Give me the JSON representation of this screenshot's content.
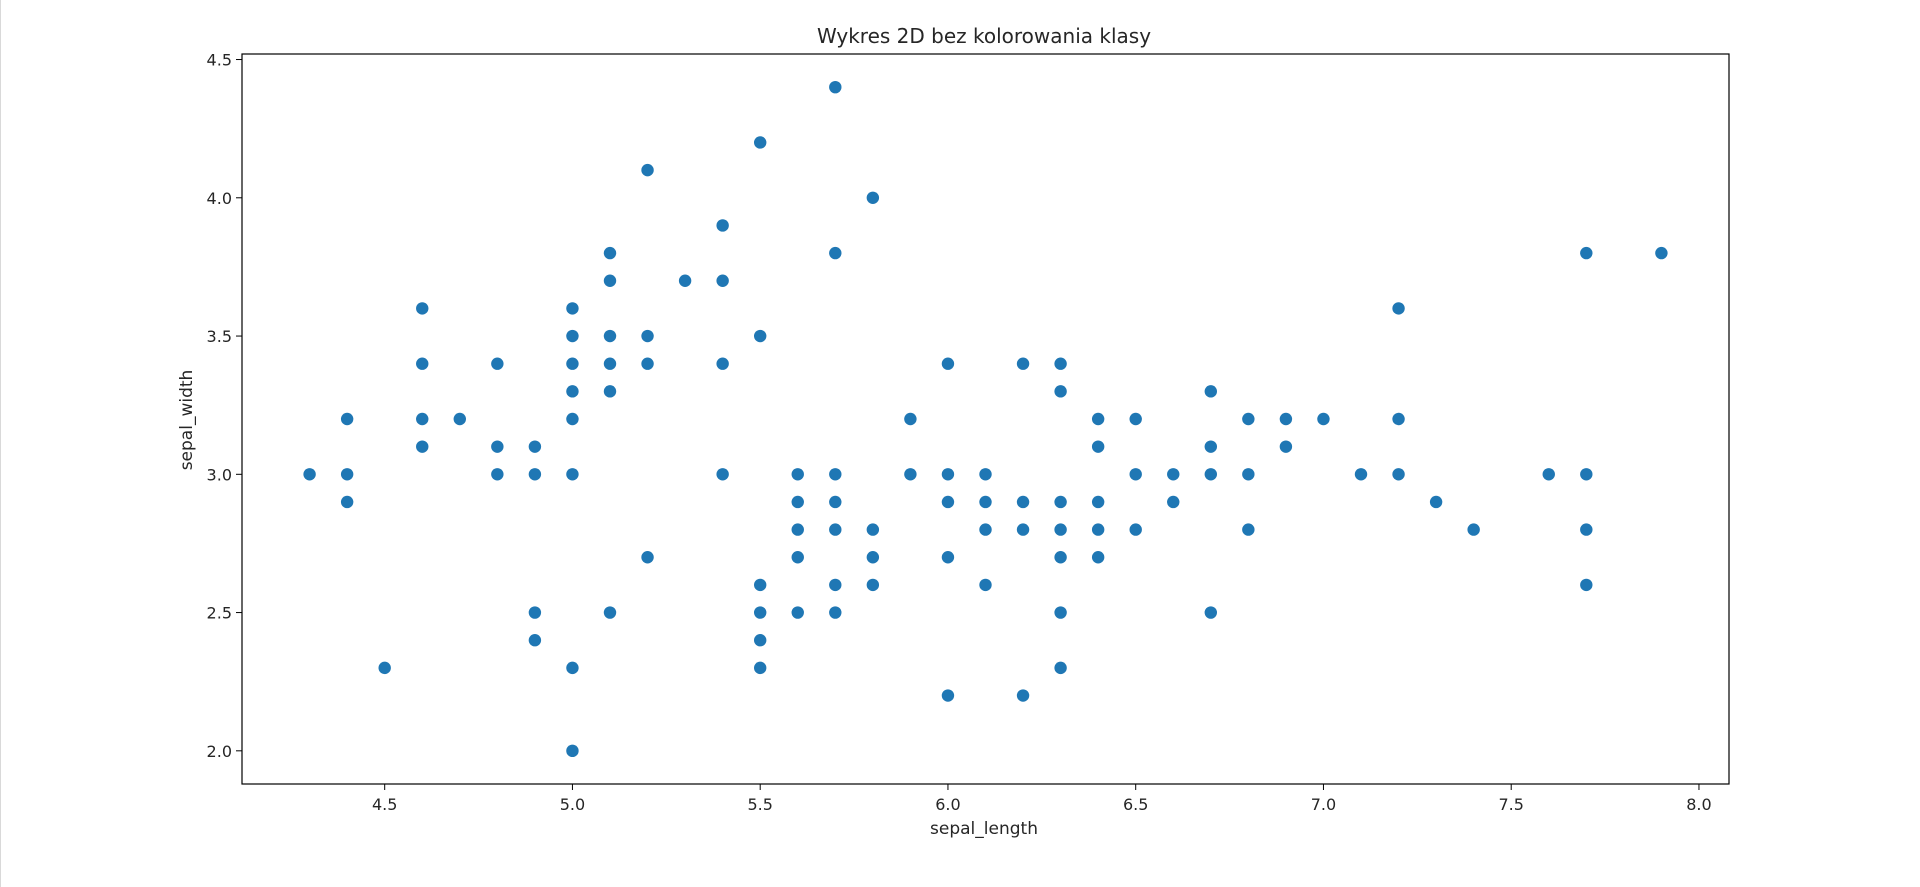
{
  "chart_data": {
    "type": "scatter",
    "title": "Wykres 2D bez kolorowania klasy",
    "xlabel": "sepal_length",
    "ylabel": "sepal_width",
    "xlim": [
      4.12,
      8.08
    ],
    "ylim": [
      1.88,
      4.52
    ],
    "xticks": [
      "4.5",
      "5.0",
      "5.5",
      "6.0",
      "6.5",
      "7.0",
      "7.5",
      "8.0"
    ],
    "xtick_values": [
      4.5,
      5.0,
      5.5,
      6.0,
      6.5,
      7.0,
      7.5,
      8.0
    ],
    "yticks": [
      "2.0",
      "2.5",
      "3.0",
      "3.5",
      "4.0",
      "4.5"
    ],
    "ytick_values": [
      2.0,
      2.5,
      3.0,
      3.5,
      4.0,
      4.5
    ],
    "grid": false,
    "marker_color": "#1f77b4",
    "points": [
      [
        4.3,
        3.0
      ],
      [
        4.4,
        3.2
      ],
      [
        4.4,
        3.0
      ],
      [
        4.4,
        2.9
      ],
      [
        4.5,
        2.3
      ],
      [
        4.6,
        3.6
      ],
      [
        4.6,
        3.4
      ],
      [
        4.6,
        3.2
      ],
      [
        4.6,
        3.1
      ],
      [
        4.7,
        3.2
      ],
      [
        4.8,
        3.4
      ],
      [
        4.8,
        3.1
      ],
      [
        4.8,
        3.0
      ],
      [
        4.9,
        3.1
      ],
      [
        4.9,
        3.0
      ],
      [
        4.9,
        2.5
      ],
      [
        4.9,
        2.4
      ],
      [
        5.0,
        3.6
      ],
      [
        5.0,
        3.5
      ],
      [
        5.0,
        3.4
      ],
      [
        5.0,
        3.3
      ],
      [
        5.0,
        3.2
      ],
      [
        5.0,
        3.0
      ],
      [
        5.0,
        2.3
      ],
      [
        5.0,
        2.0
      ],
      [
        5.1,
        3.8
      ],
      [
        5.1,
        3.7
      ],
      [
        5.1,
        3.5
      ],
      [
        5.1,
        3.4
      ],
      [
        5.1,
        3.3
      ],
      [
        5.1,
        2.5
      ],
      [
        5.2,
        4.1
      ],
      [
        5.2,
        3.5
      ],
      [
        5.2,
        3.4
      ],
      [
        5.2,
        2.7
      ],
      [
        5.3,
        3.7
      ],
      [
        5.4,
        3.9
      ],
      [
        5.4,
        3.7
      ],
      [
        5.4,
        3.4
      ],
      [
        5.4,
        3.0
      ],
      [
        5.5,
        4.2
      ],
      [
        5.5,
        3.5
      ],
      [
        5.5,
        2.6
      ],
      [
        5.5,
        2.5
      ],
      [
        5.5,
        2.4
      ],
      [
        5.5,
        2.3
      ],
      [
        5.6,
        3.0
      ],
      [
        5.6,
        2.9
      ],
      [
        5.6,
        2.8
      ],
      [
        5.6,
        2.7
      ],
      [
        5.6,
        2.5
      ],
      [
        5.7,
        4.4
      ],
      [
        5.7,
        3.8
      ],
      [
        5.7,
        3.0
      ],
      [
        5.7,
        2.9
      ],
      [
        5.7,
        2.8
      ],
      [
        5.7,
        2.6
      ],
      [
        5.7,
        2.5
      ],
      [
        5.8,
        4.0
      ],
      [
        5.8,
        2.8
      ],
      [
        5.8,
        2.7
      ],
      [
        5.8,
        2.6
      ],
      [
        5.9,
        3.2
      ],
      [
        5.9,
        3.0
      ],
      [
        6.0,
        3.4
      ],
      [
        6.0,
        3.0
      ],
      [
        6.0,
        2.9
      ],
      [
        6.0,
        2.7
      ],
      [
        6.0,
        2.2
      ],
      [
        6.1,
        3.0
      ],
      [
        6.1,
        2.9
      ],
      [
        6.1,
        2.8
      ],
      [
        6.1,
        2.6
      ],
      [
        6.2,
        3.4
      ],
      [
        6.2,
        2.9
      ],
      [
        6.2,
        2.8
      ],
      [
        6.2,
        2.2
      ],
      [
        6.3,
        3.4
      ],
      [
        6.3,
        3.3
      ],
      [
        6.3,
        2.9
      ],
      [
        6.3,
        2.8
      ],
      [
        6.3,
        2.7
      ],
      [
        6.3,
        2.5
      ],
      [
        6.3,
        2.3
      ],
      [
        6.4,
        3.2
      ],
      [
        6.4,
        3.1
      ],
      [
        6.4,
        2.9
      ],
      [
        6.4,
        2.8
      ],
      [
        6.4,
        2.7
      ],
      [
        6.5,
        3.2
      ],
      [
        6.5,
        3.0
      ],
      [
        6.5,
        2.8
      ],
      [
        6.6,
        3.0
      ],
      [
        6.6,
        2.9
      ],
      [
        6.7,
        3.3
      ],
      [
        6.7,
        3.1
      ],
      [
        6.7,
        3.0
      ],
      [
        6.7,
        2.5
      ],
      [
        6.8,
        3.2
      ],
      [
        6.8,
        3.0
      ],
      [
        6.8,
        2.8
      ],
      [
        6.9,
        3.2
      ],
      [
        6.9,
        3.1
      ],
      [
        7.0,
        3.2
      ],
      [
        7.1,
        3.0
      ],
      [
        7.2,
        3.6
      ],
      [
        7.2,
        3.2
      ],
      [
        7.2,
        3.0
      ],
      [
        7.3,
        2.9
      ],
      [
        7.4,
        2.8
      ],
      [
        7.6,
        3.0
      ],
      [
        7.7,
        3.8
      ],
      [
        7.7,
        3.0
      ],
      [
        7.7,
        2.8
      ],
      [
        7.7,
        2.6
      ],
      [
        7.9,
        3.8
      ]
    ]
  }
}
